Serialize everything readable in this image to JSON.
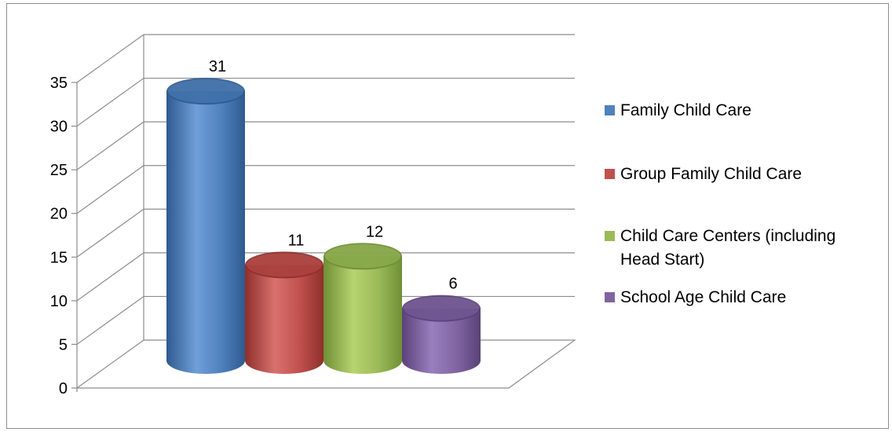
{
  "chart_data": {
    "type": "bar",
    "categories": [
      "Family Child Care",
      "Group Family Child Care",
      "Child Care Centers (including Head Start)",
      "School Age Child Care"
    ],
    "values": [
      31,
      11,
      12,
      6
    ],
    "ylim": [
      0,
      35
    ],
    "yticks": [
      0,
      5,
      10,
      15,
      20,
      25,
      30,
      35
    ],
    "grid": true,
    "legend_position": "right",
    "three_d": true,
    "legend": [
      {
        "lines": [
          "Family Child Care"
        ],
        "color": "#4f81bd"
      },
      {
        "lines": [
          "Group Family Child Care"
        ],
        "color": "#c0504d"
      },
      {
        "lines": [
          "Child Care Centers (including",
          "Head Start)"
        ],
        "color": "#9bbb59"
      },
      {
        "lines": [
          "School Age Child Care"
        ],
        "color": "#8064a2"
      }
    ],
    "colors": [
      "#4f81bd",
      "#c0504d",
      "#9bbb59",
      "#8064a2"
    ],
    "dark_colors": [
      "#2f5a8f",
      "#8e2f2c",
      "#6f8f35",
      "#5a4278"
    ],
    "light_colors": [
      "#6f9fd8",
      "#d9716e",
      "#b6d46f",
      "#9a7fbf"
    ]
  }
}
